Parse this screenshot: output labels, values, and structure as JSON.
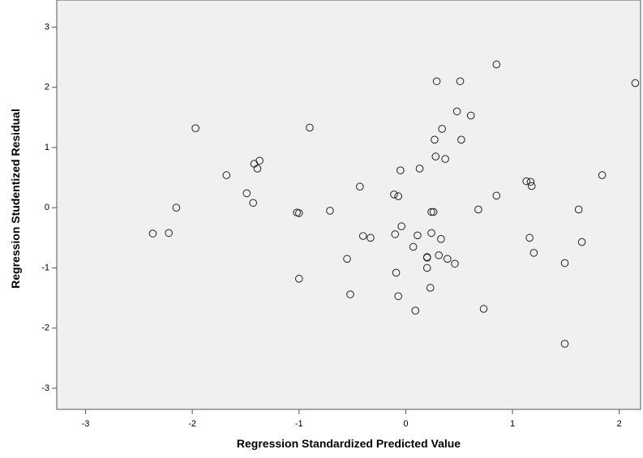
{
  "chart_data": {
    "type": "scatter",
    "xlabel": "Regression Standardized Predicted Value",
    "ylabel": "Regression Studentized Residual",
    "color": "#222222",
    "xlim": [
      -3.27,
      2.2
    ],
    "ylim": [
      -3.35,
      3.45
    ],
    "xticks": [
      -3,
      -2,
      -1,
      0,
      1,
      2
    ],
    "yticks": [
      -3,
      -2,
      -1,
      0,
      1,
      2,
      3
    ],
    "x": [
      -2.37,
      -2.22,
      -2.15,
      -1.97,
      -1.68,
      -1.49,
      -1.43,
      -1.42,
      -1.39,
      -1.37,
      -1.02,
      -1.0,
      -1.0,
      -0.9,
      -0.71,
      -0.55,
      -0.52,
      -0.43,
      -0.4,
      -0.33,
      -0.11,
      -0.1,
      -0.09,
      -0.07,
      -0.07,
      -0.05,
      -0.04,
      0.07,
      0.09,
      0.11,
      0.13,
      0.2,
      0.2,
      0.2,
      0.23,
      0.24,
      0.24,
      0.26,
      0.27,
      0.29,
      0.28,
      0.31,
      0.33,
      0.34,
      0.37,
      0.39,
      0.46,
      0.48,
      0.51,
      0.52,
      0.61,
      0.68,
      0.73,
      0.85,
      0.85,
      1.13,
      1.17,
      1.18,
      1.16,
      1.2,
      1.49,
      1.49,
      1.62,
      1.65,
      1.84,
      2.15
    ],
    "values": [
      -0.43,
      -0.42,
      0.0,
      1.32,
      0.54,
      0.24,
      0.08,
      0.73,
      0.65,
      0.78,
      -0.08,
      -0.09,
      -1.18,
      1.33,
      -0.05,
      -0.85,
      -1.44,
      0.35,
      -0.47,
      -0.5,
      0.22,
      -0.44,
      -1.08,
      0.19,
      -1.47,
      0.62,
      -0.31,
      -0.65,
      -1.71,
      -0.46,
      0.65,
      -0.83,
      -0.82,
      -1.0,
      -1.33,
      -0.42,
      -0.07,
      -0.07,
      1.13,
      2.1,
      0.85,
      -0.79,
      -0.52,
      1.31,
      0.81,
      -0.85,
      -0.93,
      1.6,
      2.1,
      1.13,
      1.53,
      -0.03,
      -1.68,
      2.38,
      0.2,
      0.44,
      0.43,
      0.36,
      -0.5,
      -0.75,
      -0.92,
      -2.26,
      -0.03,
      -0.57,
      0.54,
      2.07
    ]
  }
}
